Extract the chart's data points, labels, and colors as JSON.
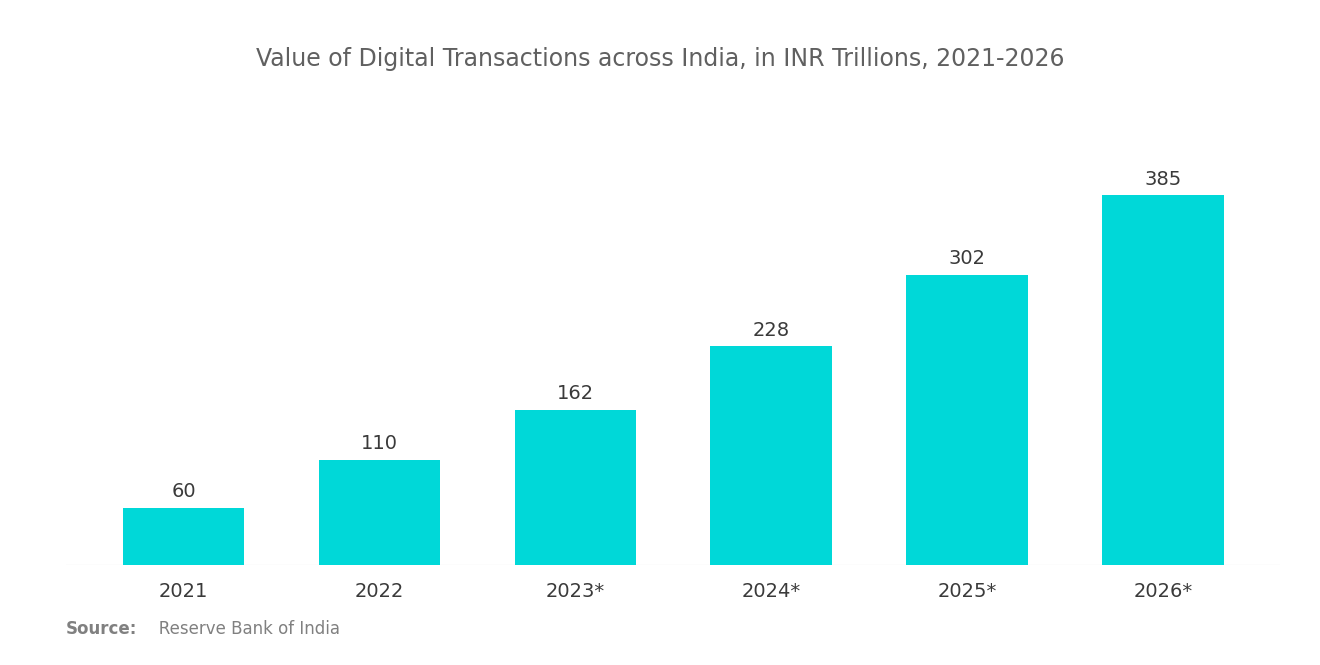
{
  "title": "Value of Digital Transactions across India, in INR Trillions, 2021-2026",
  "categories": [
    "2021",
    "2022",
    "2023*",
    "2024*",
    "2025*",
    "2026*"
  ],
  "values": [
    60,
    110,
    162,
    228,
    302,
    385
  ],
  "bar_color": "#00D8D8",
  "label_color": "#3a3a3a",
  "title_color": "#606060",
  "source_bold": "Source:",
  "source_text": "   Reserve Bank of India",
  "source_color": "#808080",
  "background_color": "#ffffff",
  "bar_label_fontsize": 14,
  "xtick_fontsize": 14,
  "title_fontsize": 17,
  "source_fontsize": 12,
  "ylim": [
    0,
    450
  ],
  "bar_width": 0.62
}
